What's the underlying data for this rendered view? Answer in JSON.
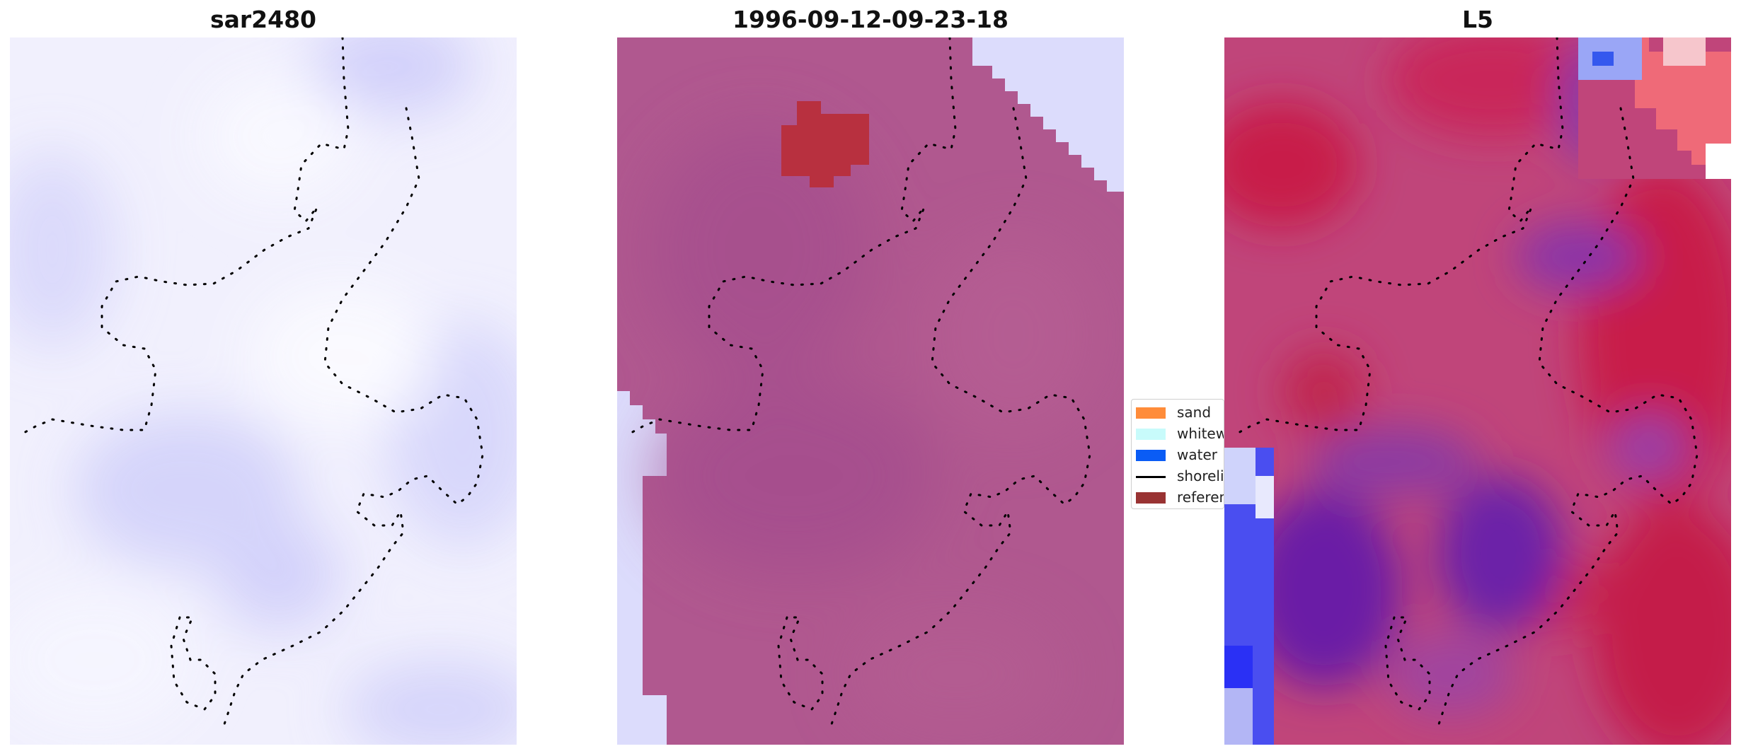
{
  "panels": [
    {
      "title": "sar2480"
    },
    {
      "title": "1996-09-12-09-23-18"
    },
    {
      "title": "L5"
    }
  ],
  "legend": {
    "items": [
      {
        "label": "sand",
        "color": "#ff8c3a",
        "kind": "patch"
      },
      {
        "label": "whitewater",
        "color": "#c8fbfb",
        "kind": "patch"
      },
      {
        "label": "water",
        "color": "#0a5cf5",
        "kind": "patch"
      },
      {
        "label": "shoreline",
        "color": "#000000",
        "kind": "line"
      },
      {
        "label": "reference",
        "color": "#993333",
        "kind": "patch"
      }
    ]
  },
  "colors": {
    "sar_base": "#efeefc",
    "classified_base": "#b0568f",
    "classified_blob": "#b8303f",
    "background_lavender": "#dcdcfc",
    "l5_red": "#c81e4a",
    "l5_purple": "#7a1fa0",
    "l5_blue": "#3a3cf0"
  }
}
